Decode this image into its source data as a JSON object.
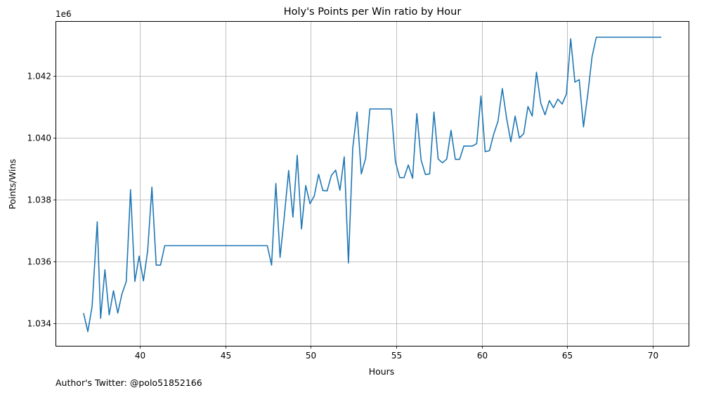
{
  "chart_data": {
    "type": "line",
    "title": "Holy's Points per Win ratio by Hour",
    "xlabel": "Hours",
    "ylabel": "Points/Wins",
    "y_offset_label": "1e6",
    "xlim": [
      35.1,
      72.1
    ],
    "ylim": [
      1.03327,
      1.04375
    ],
    "x_ticks": [
      40,
      45,
      50,
      55,
      60,
      65,
      70
    ],
    "y_ticks": [
      1.034,
      1.036,
      1.038,
      1.04,
      1.042
    ],
    "y_tick_labels": [
      "1.034",
      "1.036",
      "1.038",
      "1.040",
      "1.042"
    ],
    "grid": true,
    "line_color": "#1f77b4",
    "series": [
      {
        "x": [
          36.7,
          36.95,
          37.2,
          37.5,
          37.7,
          37.95,
          38.2,
          38.45,
          38.7,
          38.95,
          39.2,
          39.45,
          39.7,
          39.95,
          40.2,
          40.45,
          40.7,
          40.95,
          41.2,
          41.45,
          47.45,
          47.7,
          47.95,
          48.2,
          48.45,
          48.7,
          48.95,
          49.2,
          49.45,
          49.7,
          49.95,
          50.2,
          50.45,
          50.7,
          50.95,
          51.2,
          51.45,
          51.7,
          51.95,
          52.2,
          52.45,
          52.7,
          52.95,
          53.2,
          53.45,
          53.7,
          54.7,
          54.95,
          55.2,
          55.45,
          55.7,
          55.95,
          56.2,
          56.45,
          56.7,
          56.95,
          57.2,
          57.45,
          57.7,
          57.95,
          58.2,
          58.45,
          58.7,
          58.95,
          59.2,
          59.45,
          59.7,
          59.95,
          60.2,
          60.45,
          60.7,
          60.95,
          61.2,
          61.45,
          61.7,
          61.95,
          62.2,
          62.45,
          62.7,
          62.95,
          63.2,
          63.45,
          63.7,
          63.95,
          64.2,
          64.45,
          64.7,
          64.95,
          65.2,
          65.45,
          65.7,
          65.95,
          66.2,
          66.45,
          66.7,
          70.5
        ],
        "y": [
          1.03433,
          1.03373,
          1.03455,
          1.03728,
          1.03416,
          1.03573,
          1.03427,
          1.03505,
          1.03433,
          1.03495,
          1.03535,
          1.03832,
          1.03535,
          1.03617,
          1.03537,
          1.03633,
          1.0384,
          1.03588,
          1.03588,
          1.03651,
          1.03651,
          1.03588,
          1.03852,
          1.03613,
          1.03747,
          1.03894,
          1.03743,
          1.03943,
          1.03705,
          1.03845,
          1.03787,
          1.03812,
          1.03882,
          1.03829,
          1.03828,
          1.03878,
          1.03895,
          1.0383,
          1.03938,
          1.03595,
          1.03966,
          1.04083,
          1.03883,
          1.03933,
          1.04093,
          1.04093,
          1.04093,
          1.03922,
          1.03871,
          1.03871,
          1.03912,
          1.03869,
          1.04078,
          1.03928,
          1.03881,
          1.03883,
          1.04083,
          1.03931,
          1.03919,
          1.03931,
          1.04024,
          1.0393,
          1.0393,
          1.03973,
          1.03973,
          1.03973,
          1.03981,
          1.04135,
          1.03955,
          1.03958,
          1.04012,
          1.04054,
          1.04159,
          1.04064,
          1.03987,
          1.0407,
          1.03999,
          1.04013,
          1.04101,
          1.0407,
          1.04212,
          1.04112,
          1.04074,
          1.0412,
          1.04097,
          1.04125,
          1.04109,
          1.04141,
          1.0432,
          1.0418,
          1.04188,
          1.04035,
          1.0414,
          1.04262,
          1.04325,
          1.04325
        ]
      }
    ]
  },
  "footer": {
    "author_text": "Author's Twitter: @polo51852166"
  }
}
